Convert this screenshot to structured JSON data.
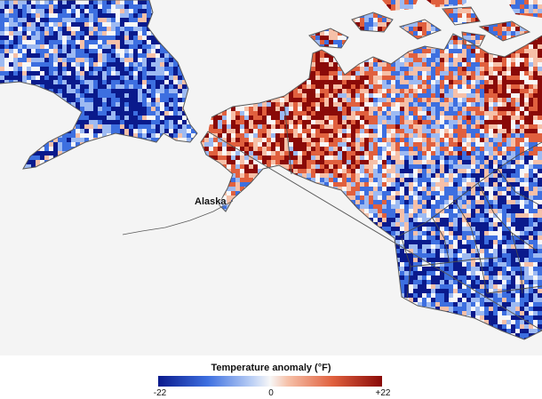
{
  "map": {
    "labels": {
      "alaska": "Alaska"
    },
    "colors": {
      "background": "#f4f4f4",
      "border": "#5a5a5a",
      "cold_strong": "#0a1a8c",
      "cold": "#3d6fe0",
      "cold_light": "#9dbaf2",
      "neutral": "#f7f7f7",
      "warm_light": "#f6c0a8",
      "warm": "#e0603e",
      "warm_strong": "#8a0a08"
    }
  },
  "legend": {
    "title": "Temperature anomaly (°F)",
    "min_label": "-22",
    "mid_label": "0",
    "max_label": "+22",
    "min": -22,
    "mid": 0,
    "max": 22
  }
}
